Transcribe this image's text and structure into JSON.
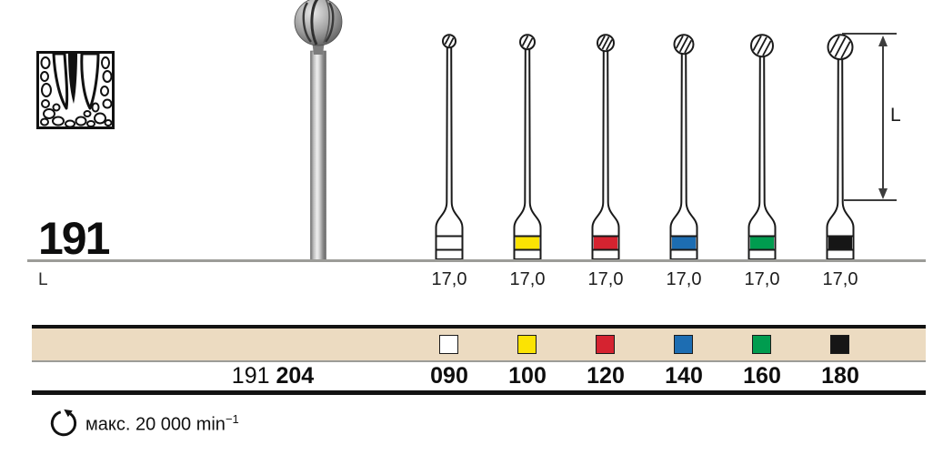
{
  "page": {
    "figure_number": "191",
    "length_row_label": "L",
    "dimension_label": "L",
    "indication_icon": "root-canal-cross-section"
  },
  "catalog_row": {
    "series": "191",
    "shank": "204"
  },
  "burs": [
    {
      "iso_size": "090",
      "length_mm": "17,0",
      "color_name": "white",
      "color": "#ffffff",
      "head_d": 14
    },
    {
      "iso_size": "100",
      "length_mm": "17,0",
      "color_name": "yellow",
      "color": "#fbe303",
      "head_d": 16
    },
    {
      "iso_size": "120",
      "length_mm": "17,0",
      "color_name": "red",
      "color": "#d52330",
      "head_d": 18
    },
    {
      "iso_size": "140",
      "length_mm": "17,0",
      "color_name": "blue",
      "color": "#1d6db2",
      "head_d": 21
    },
    {
      "iso_size": "160",
      "length_mm": "17,0",
      "color_name": "green",
      "color": "#009c4f",
      "head_d": 24
    },
    {
      "iso_size": "180",
      "length_mm": "17,0",
      "color_name": "black",
      "color": "#161616",
      "head_d": 27
    }
  ],
  "footer": {
    "max_speed": "макс. 20 000",
    "speed_unit": "min",
    "speed_exponent": "−1"
  },
  "colors": {
    "table_band_bg": "#ecdbc1",
    "rule_gray": "#9c9c98",
    "bar_black": "#131313"
  }
}
